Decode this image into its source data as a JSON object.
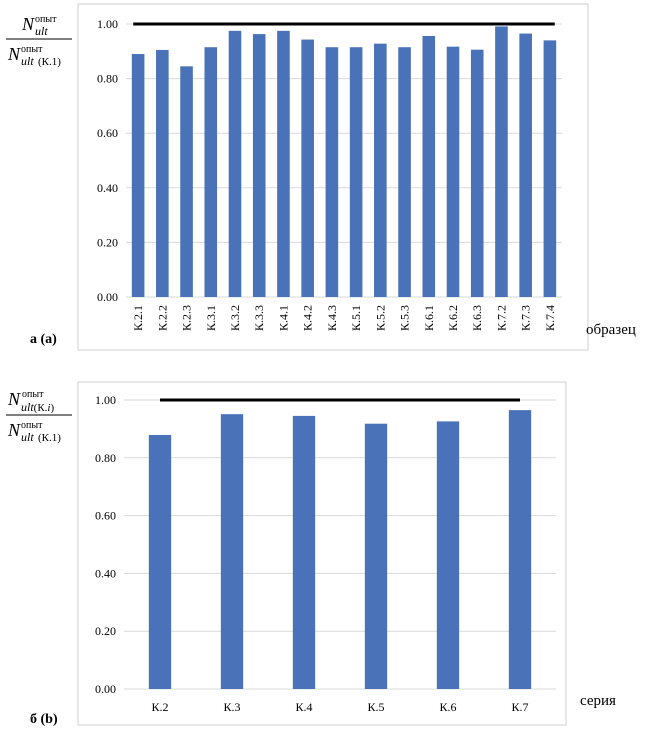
{
  "chart_data": [
    {
      "type": "bar",
      "panel_label": "а (а)",
      "xlabel": "образец",
      "ylabel": {
        "num_main": "N",
        "num_sub": "ult",
        "num_sup": "опыт",
        "num_sub_extra": "",
        "den_main": "N",
        "den_sub": "ult",
        "den_sup": "опыт",
        "den_sub_extra": "(К.1)"
      },
      "ylim": [
        0,
        1.0
      ],
      "yticks": [
        "0.00",
        "0.20",
        "0.40",
        "0.60",
        "0.80",
        "1.00"
      ],
      "reference_line": 1.0,
      "bar_color": "#4a72b8",
      "categories": [
        "К.2.1",
        "К.2.2",
        "К.2.3",
        "К.3.1",
        "К.3.2",
        "К.3.3",
        "К.4.1",
        "К.4.2",
        "К.4.3",
        "К.5.1",
        "К.5.2",
        "К.5.3",
        "К.6.1",
        "К.6.2",
        "К.6.3",
        "К.7.2",
        "К.7.3",
        "К.7.4"
      ],
      "values": [
        0.89,
        0.905,
        0.845,
        0.915,
        0.975,
        0.963,
        0.975,
        0.943,
        0.915,
        0.915,
        0.928,
        0.915,
        0.956,
        0.917,
        0.906,
        0.991,
        0.965,
        0.94
      ],
      "grid": true
    },
    {
      "type": "bar",
      "panel_label": "б (b)",
      "xlabel": "серия",
      "ylabel": {
        "num_main": "N",
        "num_sub": "ult",
        "num_sup": "опыт",
        "num_sub_extra": "(К.",
        "num_sub_i": "i",
        "num_sub_close": ")",
        "den_main": "N",
        "den_sub": "ult",
        "den_sup": "опыт",
        "den_sub_extra": "(К.1)"
      },
      "ylim": [
        0,
        1.0
      ],
      "yticks": [
        "0.00",
        "0.20",
        "0.40",
        "0.60",
        "0.80",
        "1.00"
      ],
      "reference_line": 1.0,
      "bar_color": "#4a72b8",
      "categories": [
        "К.2",
        "К.3",
        "К.4",
        "К.5",
        "К.6",
        "К.7"
      ],
      "values": [
        0.879,
        0.951,
        0.945,
        0.918,
        0.926,
        0.965
      ],
      "grid": true
    }
  ]
}
